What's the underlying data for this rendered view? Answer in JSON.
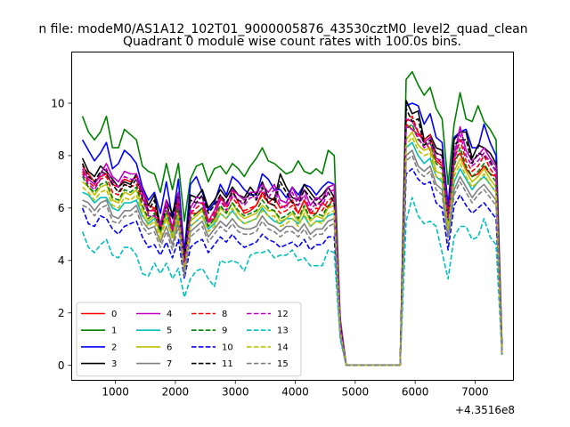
{
  "chart_data": {
    "type": "line",
    "suptitle": "n file: modeM0/AS1A12_102T01_9000005876_43530cztM0_level2_quad_clean",
    "title": "Quadrant 0 module wise count rates with 100.0s bins.",
    "xlabel": "",
    "ylabel": "",
    "x_offset_label": "+4.3516e8",
    "xlim": [
      270,
      7640
    ],
    "ylim": [
      -0.57,
      11.95
    ],
    "xticks": [
      1000,
      2000,
      3000,
      4000,
      5000,
      6000,
      7000
    ],
    "yticks": [
      0,
      2,
      4,
      6,
      8,
      10
    ],
    "grid": false,
    "legend_position": "lower-left",
    "legend_columns": 4,
    "x": [
      450,
      550,
      650,
      750,
      850,
      950,
      1050,
      1150,
      1250,
      1350,
      1450,
      1550,
      1650,
      1750,
      1850,
      1950,
      2050,
      2150,
      2250,
      2350,
      2450,
      2550,
      2650,
      2750,
      2850,
      2950,
      3050,
      3150,
      3250,
      3350,
      3450,
      3550,
      3650,
      3750,
      3850,
      3950,
      4050,
      4150,
      4250,
      4350,
      4450,
      4550,
      4650,
      4750,
      4850,
      5750,
      5850,
      5950,
      6050,
      6150,
      6250,
      6350,
      6450,
      6550,
      6650,
      6750,
      6850,
      6950,
      7050,
      7150,
      7250,
      7350,
      7450
    ],
    "series": [
      {
        "name": "0",
        "color": "#ff0000",
        "dash": false,
        "values": [
          7.6,
          7.3,
          7.0,
          7.2,
          7.3,
          6.9,
          6.8,
          7.1,
          7.0,
          7.2,
          6.8,
          6.1,
          6.0,
          5.4,
          5.8,
          5.3,
          6.2,
          3.9,
          5.8,
          5.8,
          6.0,
          5.5,
          5.6,
          6.4,
          6.1,
          6.7,
          6.2,
          5.8,
          5.9,
          6.1,
          6.6,
          6.2,
          6.4,
          6.0,
          6.1,
          6.3,
          5.8,
          6.3,
          5.8,
          5.8,
          6.2,
          6.0,
          6.5,
          1.5,
          0.0,
          0.0,
          9.2,
          9.0,
          8.8,
          8.6,
          8.2,
          7.8,
          7.6,
          6.1,
          7.8,
          8.1,
          7.5,
          7.2,
          7.3,
          7.6,
          7.3,
          7.2,
          0.6
        ]
      },
      {
        "name": "1",
        "color": "#008000",
        "dash": false,
        "values": [
          9.5,
          8.9,
          8.6,
          8.9,
          9.5,
          8.3,
          8.3,
          9.0,
          8.8,
          8.6,
          7.6,
          7.4,
          7.3,
          6.6,
          7.7,
          6.7,
          7.7,
          5.5,
          7.1,
          7.6,
          7.7,
          7.0,
          7.5,
          7.6,
          7.3,
          7.7,
          7.5,
          7.2,
          7.6,
          7.9,
          8.3,
          7.8,
          7.7,
          7.5,
          7.3,
          7.4,
          7.8,
          7.4,
          7.3,
          7.5,
          7.3,
          8.2,
          8.0,
          1.8,
          0.0,
          0.0,
          10.9,
          11.2,
          10.7,
          10.3,
          10.6,
          9.8,
          9.4,
          6.9,
          9.2,
          10.4,
          9.4,
          9.3,
          9.9,
          9.3,
          9.0,
          8.6,
          0.7
        ]
      },
      {
        "name": "2",
        "color": "#0000ff",
        "dash": false,
        "values": [
          8.6,
          8.2,
          7.8,
          8.1,
          8.5,
          7.5,
          7.7,
          8.2,
          8.0,
          7.7,
          6.8,
          6.3,
          6.6,
          5.8,
          7.0,
          5.6,
          7.1,
          4.3,
          6.9,
          7.2,
          6.6,
          5.9,
          6.2,
          6.9,
          6.5,
          7.2,
          7.0,
          6.7,
          6.5,
          6.5,
          7.3,
          7.1,
          6.7,
          6.7,
          6.4,
          6.8,
          6.5,
          6.9,
          6.8,
          6.5,
          6.8,
          7.0,
          6.9,
          1.5,
          0.0,
          0.0,
          9.9,
          10.0,
          9.9,
          9.2,
          9.6,
          8.7,
          8.5,
          6.1,
          8.7,
          8.9,
          9.0,
          8.3,
          8.3,
          9.2,
          8.5,
          8.0,
          0.6
        ]
      },
      {
        "name": "3",
        "color": "#000000",
        "dash": false,
        "values": [
          7.9,
          7.4,
          7.2,
          7.6,
          7.4,
          7.1,
          6.8,
          7.0,
          6.9,
          7.3,
          6.6,
          6.1,
          6.5,
          5.3,
          6.3,
          5.8,
          6.6,
          4.0,
          6.5,
          6.4,
          6.7,
          6.0,
          6.3,
          6.7,
          6.4,
          6.8,
          6.5,
          6.4,
          6.8,
          6.5,
          7.0,
          6.4,
          6.3,
          7.3,
          6.8,
          6.4,
          6.3,
          6.9,
          6.6,
          6.3,
          6.5,
          6.8,
          6.4,
          1.6,
          0.0,
          0.0,
          10.1,
          9.6,
          9.7,
          8.6,
          8.8,
          8.3,
          8.2,
          5.7,
          8.6,
          8.9,
          8.9,
          7.9,
          8.4,
          8.3,
          8.1,
          7.7,
          0.6
        ]
      },
      {
        "name": "4",
        "color": "#bf00bf",
        "dash": false,
        "values": [
          7.5,
          7.1,
          6.9,
          7.3,
          7.7,
          7.2,
          7.0,
          7.4,
          7.3,
          7.3,
          6.7,
          5.9,
          5.9,
          5.4,
          6.3,
          5.2,
          6.6,
          3.9,
          6.0,
          6.4,
          6.4,
          5.5,
          5.9,
          6.5,
          6.1,
          6.7,
          6.5,
          6.3,
          6.6,
          6.6,
          6.9,
          6.6,
          6.9,
          6.3,
          6.2,
          6.8,
          6.3,
          6.7,
          6.1,
          6.4,
          6.3,
          6.8,
          6.9,
          1.7,
          0.0,
          0.0,
          9.4,
          9.3,
          8.9,
          8.5,
          8.7,
          8.1,
          8.0,
          5.8,
          8.0,
          9.1,
          8.2,
          7.8,
          8.0,
          8.3,
          7.9,
          7.6,
          0.5
        ]
      },
      {
        "name": "5",
        "color": "#00bfbf",
        "dash": false,
        "values": [
          6.6,
          6.5,
          6.2,
          6.4,
          6.4,
          6.0,
          5.9,
          6.2,
          6.2,
          6.3,
          5.7,
          5.4,
          5.6,
          5.1,
          5.6,
          4.9,
          5.7,
          3.6,
          5.3,
          5.5,
          5.7,
          5.2,
          5.4,
          5.8,
          5.6,
          5.9,
          5.6,
          5.4,
          5.5,
          5.6,
          6.0,
          5.7,
          5.5,
          5.4,
          5.6,
          5.6,
          5.4,
          5.7,
          5.3,
          5.5,
          5.5,
          5.7,
          5.8,
          1.3,
          0.0,
          0.0,
          8.3,
          8.5,
          8.0,
          7.7,
          7.9,
          7.2,
          7.0,
          5.2,
          7.0,
          7.5,
          7.1,
          6.7,
          7.0,
          7.2,
          6.9,
          6.6,
          0.5
        ]
      },
      {
        "name": "6",
        "color": "#bfbf00",
        "dash": false,
        "values": [
          7.0,
          6.8,
          6.5,
          6.8,
          6.9,
          6.3,
          6.2,
          6.6,
          6.5,
          6.7,
          6.0,
          5.5,
          5.7,
          5.0,
          5.8,
          5.0,
          5.9,
          3.7,
          5.5,
          5.7,
          5.9,
          5.3,
          5.5,
          6.0,
          5.8,
          6.2,
          5.8,
          5.6,
          5.7,
          5.8,
          6.1,
          5.9,
          5.9,
          5.5,
          5.6,
          5.8,
          5.5,
          6.0,
          5.5,
          5.7,
          5.6,
          6.0,
          6.1,
          1.4,
          0.0,
          0.0,
          8.6,
          8.9,
          8.4,
          8.2,
          8.3,
          7.4,
          7.3,
          5.4,
          7.4,
          7.9,
          7.4,
          7.0,
          7.2,
          7.5,
          7.1,
          6.8,
          0.5
        ]
      },
      {
        "name": "7",
        "color": "#808080",
        "dash": false,
        "values": [
          6.3,
          6.2,
          5.9,
          6.2,
          6.3,
          5.7,
          5.6,
          5.9,
          5.9,
          6.1,
          5.5,
          5.2,
          5.3,
          4.7,
          5.3,
          4.6,
          5.5,
          3.5,
          5.1,
          5.3,
          5.5,
          4.9,
          5.2,
          5.5,
          5.3,
          5.6,
          5.3,
          5.2,
          5.2,
          5.3,
          5.7,
          5.4,
          5.3,
          5.1,
          5.3,
          5.3,
          5.1,
          5.4,
          5.0,
          5.2,
          5.2,
          5.5,
          5.6,
          1.2,
          0.0,
          0.0,
          8.0,
          8.2,
          7.6,
          7.4,
          7.6,
          6.9,
          6.7,
          4.9,
          6.7,
          7.2,
          6.8,
          6.4,
          6.7,
          6.9,
          6.6,
          6.3,
          0.4
        ]
      },
      {
        "name": "8",
        "color": "#ff0000",
        "dash": true,
        "values": [
          7.4,
          7.0,
          6.8,
          7.1,
          7.2,
          6.6,
          6.5,
          6.9,
          6.8,
          6.9,
          6.3,
          5.8,
          6.0,
          5.2,
          6.1,
          5.2,
          6.2,
          3.8,
          5.8,
          6.0,
          6.2,
          5.5,
          5.8,
          6.3,
          6.0,
          6.4,
          6.1,
          5.9,
          6.0,
          6.1,
          6.5,
          6.2,
          6.1,
          5.8,
          5.9,
          6.1,
          5.8,
          6.3,
          5.8,
          6.0,
          5.9,
          6.3,
          6.4,
          1.5,
          0.0,
          0.0,
          9.3,
          9.5,
          8.9,
          8.6,
          8.8,
          7.9,
          7.7,
          5.7,
          7.8,
          8.6,
          7.8,
          7.4,
          7.6,
          8.0,
          7.5,
          7.2,
          0.5
        ]
      },
      {
        "name": "9",
        "color": "#008000",
        "dash": true,
        "values": [
          7.2,
          6.8,
          6.6,
          6.9,
          7.0,
          6.4,
          6.3,
          6.7,
          6.6,
          6.8,
          6.1,
          5.6,
          5.8,
          5.1,
          5.9,
          5.1,
          6.0,
          3.7,
          5.6,
          5.8,
          6.0,
          5.3,
          5.6,
          6.1,
          5.8,
          6.2,
          5.9,
          5.7,
          5.8,
          5.9,
          6.3,
          6.0,
          5.9,
          5.6,
          5.7,
          5.9,
          5.6,
          6.1,
          5.6,
          5.8,
          5.7,
          6.1,
          6.2,
          1.4,
          0.0,
          0.0,
          9.0,
          9.2,
          8.6,
          8.4,
          8.5,
          7.7,
          7.5,
          5.5,
          7.6,
          8.3,
          7.6,
          7.2,
          7.4,
          7.7,
          7.3,
          7.0,
          0.5
        ]
      },
      {
        "name": "10",
        "color": "#0000ff",
        "dash": true,
        "values": [
          6.0,
          5.4,
          5.3,
          5.7,
          5.6,
          5.2,
          5.0,
          5.3,
          5.4,
          5.5,
          4.9,
          4.5,
          4.6,
          4.2,
          4.7,
          4.1,
          4.8,
          3.3,
          4.5,
          4.7,
          4.8,
          4.3,
          4.6,
          4.9,
          4.7,
          5.0,
          4.7,
          4.5,
          4.6,
          4.7,
          5.0,
          4.8,
          4.7,
          4.5,
          4.6,
          4.7,
          4.5,
          4.8,
          4.4,
          4.6,
          4.6,
          4.9,
          4.9,
          1.1,
          0.0,
          0.0,
          7.3,
          7.5,
          7.1,
          6.9,
          7.0,
          6.2,
          6.0,
          4.4,
          6.1,
          6.5,
          6.1,
          5.8,
          6.0,
          6.2,
          5.9,
          5.6,
          0.4
        ]
      },
      {
        "name": "11",
        "color": "#000000",
        "dash": true,
        "values": [
          7.7,
          7.2,
          7.0,
          7.4,
          7.3,
          6.9,
          6.6,
          6.9,
          6.8,
          7.1,
          6.4,
          5.9,
          6.3,
          5.2,
          6.1,
          5.6,
          6.4,
          3.9,
          6.3,
          6.2,
          6.5,
          5.8,
          6.1,
          6.5,
          6.2,
          6.6,
          6.3,
          6.2,
          6.6,
          6.3,
          6.8,
          6.2,
          6.1,
          7.0,
          6.6,
          6.2,
          6.1,
          6.7,
          6.4,
          6.1,
          6.3,
          6.6,
          6.2,
          1.5,
          0.0,
          0.0,
          9.8,
          9.3,
          9.4,
          8.4,
          8.6,
          8.1,
          8.0,
          5.6,
          8.4,
          8.6,
          8.6,
          7.7,
          8.1,
          8.0,
          7.8,
          7.4,
          0.5
        ]
      },
      {
        "name": "12",
        "color": "#bf00bf",
        "dash": true,
        "values": [
          7.3,
          6.9,
          6.7,
          7.1,
          7.5,
          7.0,
          6.8,
          7.2,
          7.1,
          7.1,
          6.5,
          5.7,
          5.7,
          5.3,
          6.1,
          5.1,
          6.4,
          3.8,
          5.8,
          6.2,
          6.2,
          5.4,
          5.7,
          6.3,
          5.9,
          6.5,
          6.3,
          6.1,
          6.4,
          6.4,
          6.7,
          6.4,
          6.7,
          6.1,
          6.0,
          6.6,
          6.1,
          6.5,
          5.9,
          6.2,
          6.1,
          6.6,
          6.7,
          1.6,
          0.0,
          0.0,
          9.1,
          9.0,
          8.7,
          8.3,
          8.5,
          7.9,
          7.8,
          5.6,
          7.8,
          8.8,
          8.0,
          7.6,
          7.8,
          8.1,
          7.7,
          7.4,
          0.5
        ]
      },
      {
        "name": "13",
        "color": "#00bfbf",
        "dash": true,
        "values": [
          5.1,
          4.5,
          4.3,
          4.6,
          4.8,
          4.2,
          4.1,
          4.5,
          4.5,
          4.2,
          3.5,
          3.4,
          3.9,
          3.5,
          3.9,
          3.3,
          3.7,
          2.6,
          3.3,
          3.6,
          3.7,
          3.3,
          3.0,
          4.0,
          3.9,
          4.0,
          3.9,
          3.6,
          4.2,
          4.3,
          4.3,
          4.4,
          4.1,
          4.2,
          4.2,
          4.4,
          4.0,
          4.1,
          3.8,
          3.8,
          3.8,
          4.4,
          4.3,
          1.0,
          0.0,
          0.0,
          5.5,
          6.4,
          5.7,
          5.4,
          5.5,
          5.3,
          4.3,
          3.3,
          4.9,
          5.3,
          5.3,
          4.8,
          4.9,
          5.6,
          4.9,
          4.6,
          0.4
        ]
      },
      {
        "name": "14",
        "color": "#bfbf00",
        "dash": true,
        "values": [
          6.8,
          6.6,
          6.3,
          6.6,
          6.7,
          6.1,
          6.0,
          6.4,
          6.3,
          6.5,
          5.8,
          5.3,
          5.5,
          4.8,
          5.6,
          4.8,
          5.7,
          3.6,
          5.3,
          5.5,
          5.7,
          5.1,
          5.3,
          5.8,
          5.6,
          6.0,
          5.6,
          5.4,
          5.5,
          5.6,
          5.9,
          5.7,
          5.7,
          5.3,
          5.4,
          5.6,
          5.3,
          5.8,
          5.3,
          5.5,
          5.4,
          5.8,
          5.9,
          1.3,
          0.0,
          0.0,
          8.4,
          8.7,
          8.2,
          8.0,
          8.1,
          7.2,
          7.1,
          5.2,
          7.2,
          7.7,
          7.2,
          6.8,
          7.0,
          7.3,
          6.9,
          6.6,
          0.5
        ]
      },
      {
        "name": "15",
        "color": "#808080",
        "dash": true,
        "values": [
          6.1,
          6.0,
          5.7,
          6.0,
          6.1,
          5.5,
          5.4,
          5.7,
          5.7,
          5.9,
          5.3,
          5.0,
          5.1,
          4.5,
          5.1,
          4.4,
          5.3,
          3.4,
          4.9,
          5.1,
          5.3,
          4.7,
          5.0,
          5.3,
          5.1,
          5.4,
          5.1,
          5.0,
          5.0,
          5.1,
          5.5,
          5.2,
          5.1,
          4.9,
          5.1,
          5.1,
          4.9,
          5.2,
          4.8,
          5.0,
          5.0,
          5.3,
          5.4,
          1.2,
          0.0,
          0.0,
          7.8,
          8.0,
          7.4,
          7.2,
          7.4,
          6.7,
          6.5,
          4.7,
          6.5,
          7.0,
          6.6,
          6.2,
          6.5,
          6.7,
          6.4,
          6.1,
          0.4
        ]
      }
    ]
  }
}
